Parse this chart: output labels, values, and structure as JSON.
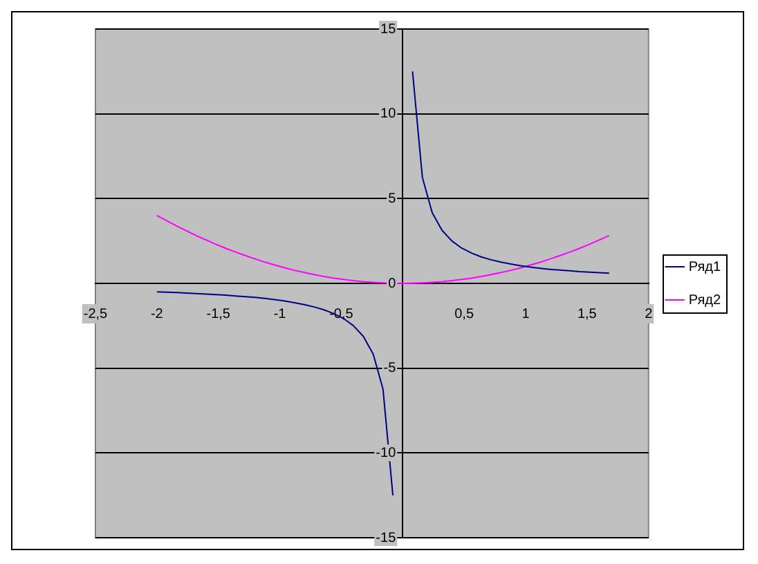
{
  "chart_data": {
    "type": "line",
    "x": [
      -2,
      -1.92,
      -1.84,
      -1.76,
      -1.68,
      -1.6,
      -1.52,
      -1.44,
      -1.36,
      -1.28,
      -1.2,
      -1.12,
      -1.04,
      -0.96,
      -0.88,
      -0.8,
      -0.72,
      -0.64,
      -0.56,
      -0.48,
      -0.4,
      -0.32,
      -0.24,
      -0.16,
      -0.08,
      0,
      0.08,
      0.16,
      0.24,
      0.32,
      0.4,
      0.48,
      0.56,
      0.64,
      0.72,
      0.8,
      0.88,
      0.96,
      1.04,
      1.12,
      1.2,
      1.28,
      1.36,
      1.44,
      1.52,
      1.6,
      1.68
    ],
    "series": [
      {
        "name": "Ряд1",
        "color": "#000080",
        "values": [
          -0.5,
          -0.52,
          -0.54,
          -0.57,
          -0.6,
          -0.63,
          -0.66,
          -0.69,
          -0.74,
          -0.78,
          -0.83,
          -0.89,
          -0.96,
          -1.04,
          -1.14,
          -1.25,
          -1.39,
          -1.56,
          -1.79,
          -2.08,
          -2.5,
          -3.13,
          -4.17,
          -6.25,
          -12.5,
          null,
          12.5,
          6.25,
          4.17,
          3.13,
          2.5,
          2.08,
          1.79,
          1.56,
          1.39,
          1.25,
          1.14,
          1.04,
          0.96,
          0.89,
          0.83,
          0.78,
          0.74,
          0.69,
          0.66,
          0.63,
          0.6
        ]
      },
      {
        "name": "Ряд2",
        "color": "#ff00ff",
        "values": [
          4,
          3.69,
          3.39,
          3.1,
          2.82,
          2.56,
          2.31,
          2.07,
          1.85,
          1.64,
          1.44,
          1.25,
          1.08,
          0.92,
          0.77,
          0.64,
          0.52,
          0.41,
          0.31,
          0.23,
          0.16,
          0.1,
          0.06,
          0.03,
          0.01,
          0,
          0.01,
          0.03,
          0.06,
          0.1,
          0.16,
          0.23,
          0.31,
          0.41,
          0.52,
          0.64,
          0.77,
          0.92,
          1.08,
          1.25,
          1.44,
          1.64,
          1.85,
          2.07,
          2.31,
          2.56,
          2.82
        ]
      }
    ],
    "xlim": [
      -2.5,
      2
    ],
    "xticks": [
      {
        "value": -2.5,
        "label": "-2,5"
      },
      -2,
      {
        "value": -1.5,
        "label": "-1,5"
      },
      -1,
      {
        "value": -0.5,
        "label": "-0,5"
      },
      {
        "value": 0,
        "label": null
      },
      {
        "value": 0.5,
        "label": "0,5"
      },
      1,
      {
        "value": 1.5,
        "label": "1,5"
      },
      2
    ],
    "ylim": [
      -15,
      15
    ],
    "yticks": [
      -15,
      -10,
      -5,
      0,
      5,
      10,
      15
    ],
    "grid": "y",
    "legend": "right",
    "marker": "none",
    "line_style": "solid"
  }
}
